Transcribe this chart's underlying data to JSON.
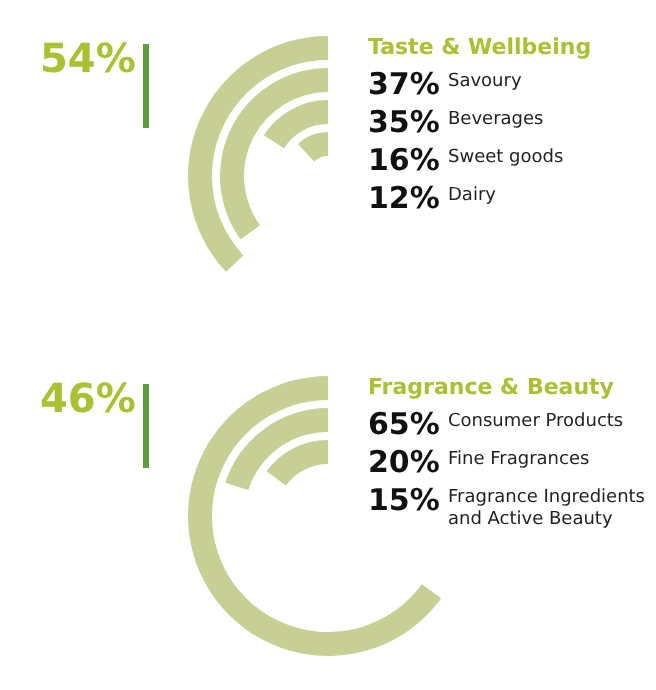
{
  "chart_data": [
    {
      "type": "other",
      "title": "Taste & Wellbeing",
      "annotations": [
        "54%"
      ],
      "color": "#c8cf95",
      "categories": [
        "Savoury",
        "Beverages",
        "Sweet goods",
        "Dairy"
      ],
      "values": [
        37,
        35,
        16,
        12
      ],
      "value_labels": [
        "37%",
        "35%",
        "16%",
        "12%"
      ]
    },
    {
      "type": "other",
      "title": "Fragrance & Beauty",
      "annotations": [
        "46%"
      ],
      "color": "#c8cf95",
      "categories": [
        "Consumer Products",
        "Fine Fragrances",
        "Fragrance Ingredients and Active Beauty"
      ],
      "values": [
        65,
        20,
        15
      ],
      "value_labels": [
        "65%",
        "20%",
        "15%"
      ]
    }
  ]
}
